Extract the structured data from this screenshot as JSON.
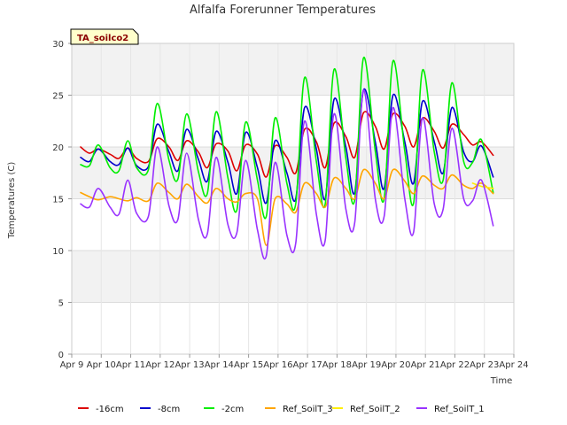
{
  "chart_data": {
    "type": "line",
    "title": "Alfalfa Forerunner Temperatures",
    "xlabel": "Time",
    "ylabel": "Temperatures (C)",
    "badge": "TA_soilco2",
    "ylim": [
      0,
      30
    ],
    "yticks": [
      0,
      5,
      10,
      15,
      20,
      25,
      30
    ],
    "xlim": [
      9,
      24
    ],
    "xticks": [
      {
        "v": 9,
        "label": "Apr 9"
      },
      {
        "v": 10,
        "label": "Apr 10"
      },
      {
        "v": 11,
        "label": "Apr 11"
      },
      {
        "v": 12,
        "label": "Apr 12"
      },
      {
        "v": 13,
        "label": "Apr 13"
      },
      {
        "v": 14,
        "label": "Apr 14"
      },
      {
        "v": 15,
        "label": "Apr 15"
      },
      {
        "v": 16,
        "label": "Apr 16"
      },
      {
        "v": 17,
        "label": "Apr 17"
      },
      {
        "v": 18,
        "label": "Apr 18"
      },
      {
        "v": 19,
        "label": "Apr 19"
      },
      {
        "v": 20,
        "label": "Apr 20"
      },
      {
        "v": 21,
        "label": "Apr 21"
      },
      {
        "v": 22,
        "label": "Apr 22"
      },
      {
        "v": 23,
        "label": "Apr 23"
      },
      {
        "v": 24,
        "label": "Apr 24"
      }
    ],
    "grid": true,
    "legend_position": "bottom",
    "series": [
      {
        "name": "-16cm",
        "color": "#dd0000",
        "x": [
          9.3,
          9.6,
          9.9,
          10.3,
          10.6,
          10.9,
          11.2,
          11.6,
          11.9,
          12.3,
          12.6,
          12.9,
          13.3,
          13.6,
          13.9,
          14.3,
          14.6,
          14.9,
          15.3,
          15.6,
          15.9,
          16.3,
          16.6,
          16.9,
          17.3,
          17.6,
          17.9,
          18.3,
          18.6,
          18.9,
          19.3,
          19.6,
          19.9,
          20.3,
          20.6,
          20.9,
          21.3,
          21.6,
          21.9,
          22.3,
          22.6,
          22.9,
          23.3
        ],
        "y": [
          20,
          19.4,
          19.8,
          19.3,
          18.9,
          19.9,
          18.9,
          18.6,
          20.8,
          20,
          18.7,
          20.6,
          19.5,
          18,
          20.3,
          19.6,
          17.7,
          20.2,
          19.3,
          17.1,
          20.1,
          19,
          17.5,
          21.7,
          20.5,
          18,
          22.3,
          21,
          19,
          23.3,
          22,
          19.8,
          23.2,
          22,
          20,
          22.8,
          21.5,
          19.9,
          22.2,
          21.2,
          20.2,
          20.5,
          19.2
        ]
      },
      {
        "name": "-8cm",
        "color": "#0000cc",
        "x": [
          9.3,
          9.6,
          9.9,
          10.3,
          10.6,
          10.9,
          11.2,
          11.6,
          11.9,
          12.3,
          12.6,
          12.9,
          13.3,
          13.6,
          13.9,
          14.3,
          14.6,
          14.9,
          15.3,
          15.6,
          15.9,
          16.3,
          16.6,
          16.9,
          17.3,
          17.6,
          17.9,
          18.3,
          18.6,
          18.9,
          19.3,
          19.6,
          19.9,
          20.3,
          20.6,
          20.9,
          21.3,
          21.6,
          21.9,
          22.3,
          22.6,
          22.9,
          23.3
        ],
        "y": [
          19,
          18.6,
          19.8,
          18.6,
          18.3,
          19.9,
          18.2,
          18.1,
          22.2,
          19.5,
          17.7,
          21.7,
          18.8,
          16.7,
          21.5,
          18.5,
          15.5,
          21.4,
          18,
          14.6,
          20.6,
          17.5,
          15,
          23.8,
          19.8,
          15,
          24.6,
          20,
          15.6,
          25.5,
          20.5,
          16,
          25,
          20.5,
          16.5,
          24.4,
          20.5,
          17.5,
          23.8,
          19.5,
          18.6,
          20.1,
          17.1
        ]
      },
      {
        "name": "-2cm",
        "color": "#00ee00",
        "x": [
          9.3,
          9.6,
          9.9,
          10.3,
          10.6,
          10.9,
          11.2,
          11.6,
          11.9,
          12.3,
          12.6,
          12.9,
          13.3,
          13.6,
          13.9,
          14.3,
          14.6,
          14.9,
          15.3,
          15.6,
          15.9,
          16.3,
          16.6,
          16.9,
          17.3,
          17.6,
          17.9,
          18.3,
          18.6,
          18.9,
          19.3,
          19.6,
          19.9,
          20.3,
          20.6,
          20.9,
          21.3,
          21.6,
          21.9,
          22.3,
          22.6,
          22.9,
          23.3
        ],
        "y": [
          18.3,
          18.2,
          20.2,
          18,
          17.7,
          20.6,
          18,
          17.8,
          24.2,
          18.7,
          16.9,
          23.2,
          17.6,
          15.5,
          23.4,
          17,
          13.9,
          22.4,
          16.8,
          13.3,
          22.8,
          16.5,
          14.5,
          26.7,
          18.6,
          14.5,
          27.5,
          18.9,
          14.9,
          28.6,
          19.6,
          15,
          28.3,
          19.6,
          14.6,
          27.4,
          19.5,
          16.8,
          26.2,
          18.6,
          18.5,
          20.7,
          15.6
        ]
      },
      {
        "name": "Ref_SoilT_3",
        "color": "#ffa500",
        "x": [
          9.3,
          9.6,
          9.9,
          10.3,
          10.6,
          10.9,
          11.2,
          11.6,
          11.9,
          12.3,
          12.6,
          12.9,
          13.3,
          13.6,
          13.9,
          14.3,
          14.6,
          14.9,
          15.3,
          15.6,
          15.9,
          16.3,
          16.6,
          16.9,
          17.3,
          17.6,
          17.9,
          18.3,
          18.6,
          18.9,
          19.3,
          19.6,
          19.9,
          20.3,
          20.6,
          20.9,
          21.3,
          21.6,
          21.9,
          22.3,
          22.6,
          22.9,
          23.3
        ],
        "y": [
          15.6,
          15.2,
          14.9,
          15.2,
          15,
          14.8,
          15.1,
          14.8,
          16.5,
          15.6,
          15,
          16.4,
          15.2,
          14.6,
          16,
          15,
          14.7,
          15.5,
          15,
          10.5,
          15,
          14.5,
          13.7,
          16.5,
          15.5,
          14.2,
          17,
          16,
          15,
          17.8,
          16.5,
          15,
          17.8,
          16.7,
          15.5,
          17.2,
          16.3,
          16,
          17.3,
          16.3,
          16,
          16.5,
          15.5
        ]
      },
      {
        "name": "Ref_SoilT_2",
        "color": "#ffee00",
        "x": [
          22.6,
          22.9,
          23.3
        ],
        "y": [
          16.5,
          16.2,
          16
        ]
      },
      {
        "name": "Ref_SoilT_1",
        "color": "#9933ff",
        "x": [
          9.3,
          9.6,
          9.9,
          10.3,
          10.6,
          10.9,
          11.2,
          11.6,
          11.9,
          12.3,
          12.6,
          12.9,
          13.3,
          13.6,
          13.9,
          14.3,
          14.6,
          14.9,
          15.3,
          15.6,
          15.9,
          16.3,
          16.6,
          16.9,
          17.3,
          17.6,
          17.9,
          18.3,
          18.6,
          18.9,
          19.3,
          19.6,
          19.9,
          20.3,
          20.6,
          20.9,
          21.3,
          21.6,
          21.9,
          22.3,
          22.6,
          22.9,
          23.3
        ],
        "y": [
          14.5,
          14.2,
          16,
          14.2,
          13.5,
          16.8,
          13.6,
          13.3,
          20,
          14.3,
          13,
          19.4,
          13,
          11.6,
          19,
          12.5,
          11.7,
          18.7,
          12,
          9.5,
          18.5,
          11.5,
          10.7,
          22.5,
          13.5,
          11,
          23.2,
          14,
          12.7,
          25.5,
          15,
          13.3,
          23.8,
          15,
          11.8,
          22.8,
          14.5,
          14,
          21.8,
          15,
          14.8,
          16.8,
          12.4
        ]
      }
    ]
  }
}
